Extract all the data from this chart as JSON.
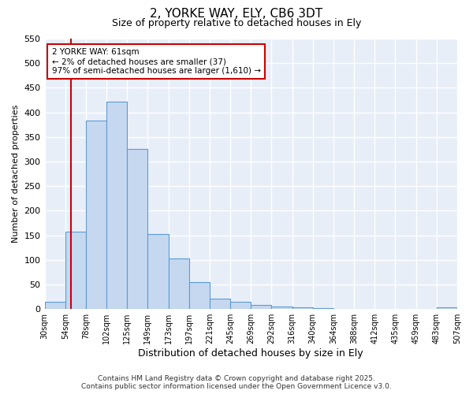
{
  "title_line1": "2, YORKE WAY, ELY, CB6 3DT",
  "title_line2": "Size of property relative to detached houses in Ely",
  "xlabel": "Distribution of detached houses by size in Ely",
  "ylabel": "Number of detached properties",
  "bar_heights": [
    14,
    157,
    383,
    422,
    325,
    152,
    103,
    55,
    21,
    14,
    8,
    5,
    3,
    2,
    1,
    1,
    1,
    1,
    0,
    3
  ],
  "bar_color": "#c5d8f0",
  "bar_edge_color": "#5b9bd5",
  "vline_x_index": 1,
  "vline_color": "#cc0000",
  "ylim": [
    0,
    550
  ],
  "yticks": [
    0,
    50,
    100,
    150,
    200,
    250,
    300,
    350,
    400,
    450,
    500,
    550
  ],
  "annotation_text": "2 YORKE WAY: 61sqm\n← 2% of detached houses are smaller (37)\n97% of semi-detached houses are larger (1,610) →",
  "annotation_box_edge_color": "#cc0000",
  "footer_line1": "Contains HM Land Registry data © Crown copyright and database right 2025.",
  "footer_line2": "Contains public sector information licensed under the Open Government Licence v3.0.",
  "plot_bg_color": "#e8eef8",
  "fig_bg_color": "#ffffff",
  "grid_color": "#ffffff",
  "tick_labels": [
    "30sqm",
    "54sqm",
    "78sqm",
    "102sqm",
    "125sqm",
    "149sqm",
    "173sqm",
    "197sqm",
    "221sqm",
    "245sqm",
    "269sqm",
    "292sqm",
    "316sqm",
    "340sqm",
    "364sqm",
    "388sqm",
    "412sqm",
    "435sqm",
    "459sqm",
    "483sqm",
    "507sqm"
  ],
  "n_bars": 20
}
